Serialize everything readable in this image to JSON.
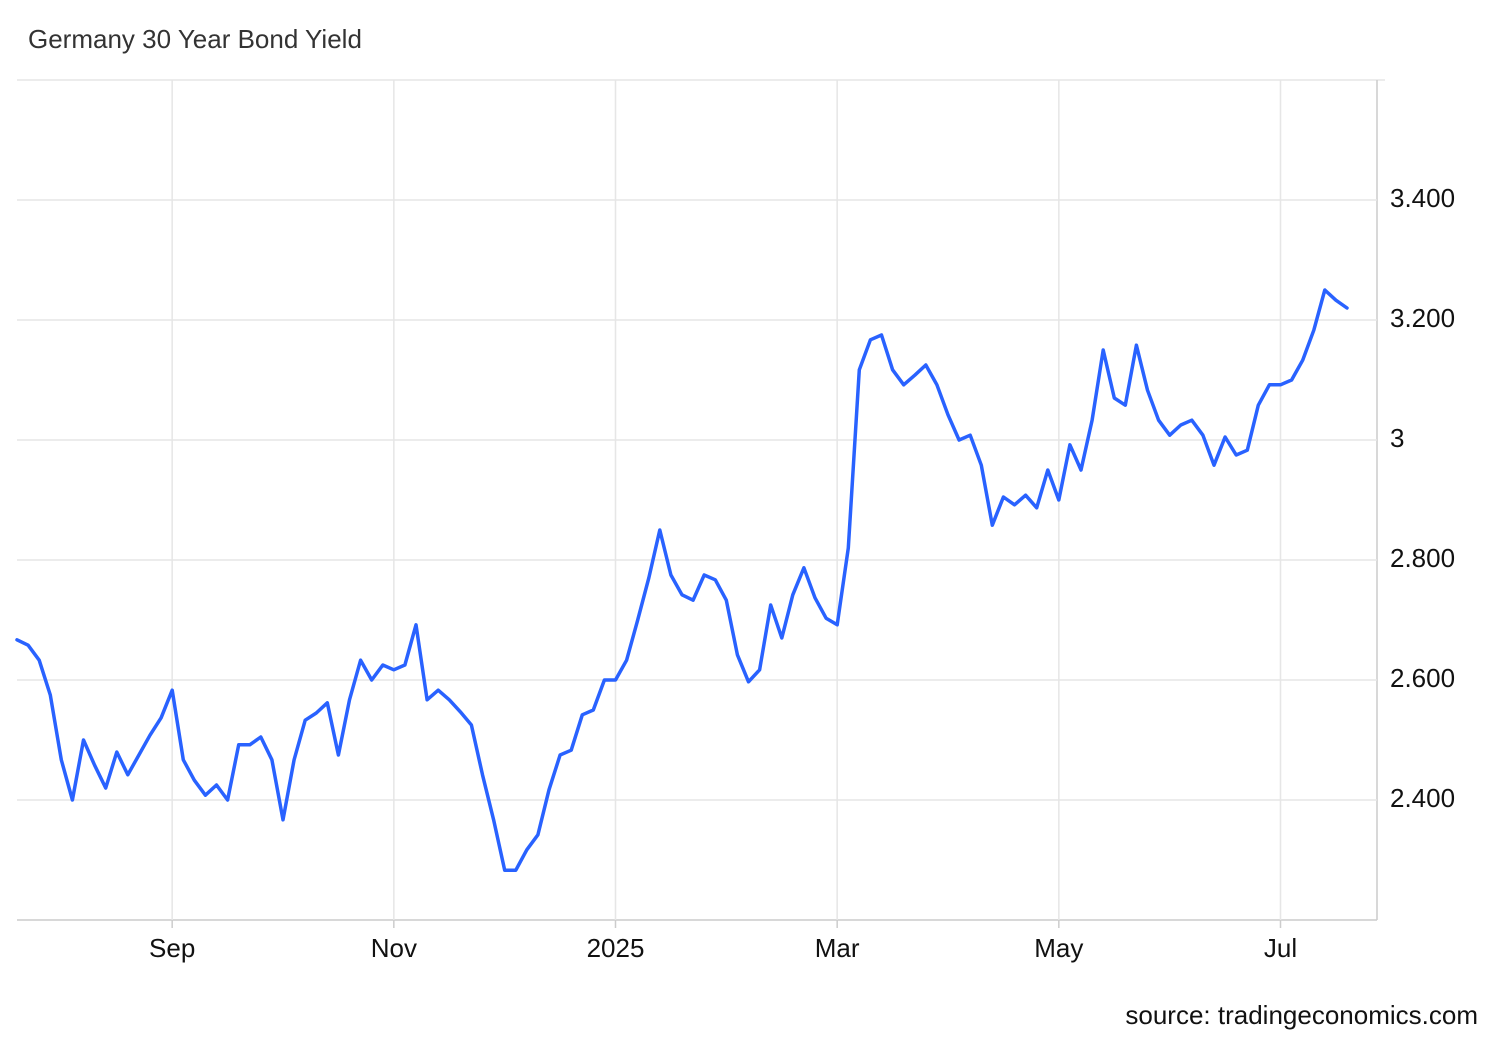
{
  "chart_data": {
    "type": "line",
    "title": "Germany 30 Year Bond Yield",
    "source": "source: tradingeconomics.com",
    "categories": [
      null,
      null,
      null,
      null,
      null,
      null,
      null,
      null,
      null,
      null,
      null,
      null,
      null,
      null,
      "Sep",
      null,
      null,
      null,
      null,
      null,
      null,
      null,
      null,
      null,
      null,
      null,
      null,
      null,
      null,
      null,
      null,
      null,
      null,
      null,
      "Nov",
      null,
      null,
      null,
      null,
      null,
      null,
      null,
      null,
      null,
      null,
      null,
      null,
      null,
      null,
      null,
      null,
      null,
      null,
      null,
      "2025",
      null,
      null,
      null,
      null,
      null,
      null,
      null,
      null,
      null,
      null,
      null,
      null,
      null,
      null,
      null,
      null,
      null,
      null,
      null,
      "Mar",
      null,
      null,
      null,
      null,
      null,
      null,
      null,
      null,
      null,
      null,
      null,
      null,
      null,
      null,
      null,
      null,
      null,
      null,
      null,
      "May",
      null,
      null,
      null,
      null,
      null,
      null,
      null,
      null,
      null,
      null,
      null,
      null,
      null,
      null,
      null,
      null,
      null,
      null,
      null,
      "Jul",
      null,
      null,
      null,
      null,
      null,
      null
    ],
    "values": [
      2.667,
      2.658,
      2.633,
      2.575,
      2.467,
      2.4,
      2.5,
      2.458,
      2.42,
      2.48,
      2.442,
      2.475,
      2.508,
      2.537,
      2.583,
      2.467,
      2.433,
      2.408,
      2.425,
      2.4,
      2.492,
      2.492,
      2.505,
      2.467,
      2.367,
      2.467,
      2.533,
      2.545,
      2.562,
      2.475,
      2.567,
      2.633,
      2.6,
      2.625,
      2.617,
      2.625,
      2.692,
      2.567,
      2.583,
      2.567,
      2.547,
      2.525,
      2.442,
      2.367,
      2.283,
      2.283,
      2.317,
      2.342,
      2.417,
      2.475,
      2.483,
      2.542,
      2.55,
      2.6,
      2.6,
      2.633,
      2.7,
      2.77,
      2.85,
      2.775,
      2.742,
      2.733,
      2.775,
      2.767,
      2.733,
      2.642,
      2.597,
      2.617,
      2.725,
      2.67,
      2.742,
      2.787,
      2.737,
      2.703,
      2.692,
      2.82,
      3.117,
      3.167,
      3.175,
      3.117,
      3.092,
      3.108,
      3.125,
      3.092,
      3.042,
      3,
      3.008,
      2.958,
      2.858,
      2.905,
      2.892,
      2.908,
      2.887,
      2.95,
      2.9,
      2.992,
      2.95,
      3.033,
      3.15,
      3.07,
      3.058,
      3.158,
      3.083,
      3.033,
      3.008,
      3.025,
      3.033,
      3.008,
      2.958,
      3.005,
      2.975,
      2.983,
      3.058,
      3.092,
      3.092,
      3.1,
      3.133,
      3.183,
      3.25,
      3.233,
      3.22
    ],
    "color": "#2962ff",
    "ylim": [
      2.2,
      3.6
    ],
    "yticks": [
      {
        "value": 2.4,
        "label": "2.400"
      },
      {
        "value": 2.6,
        "label": "2.600"
      },
      {
        "value": 2.8,
        "label": "2.800"
      },
      3,
      {
        "value": 3.2,
        "label": "3.200"
      },
      {
        "value": 3.4,
        "label": "3.400"
      }
    ],
    "grid": true
  }
}
